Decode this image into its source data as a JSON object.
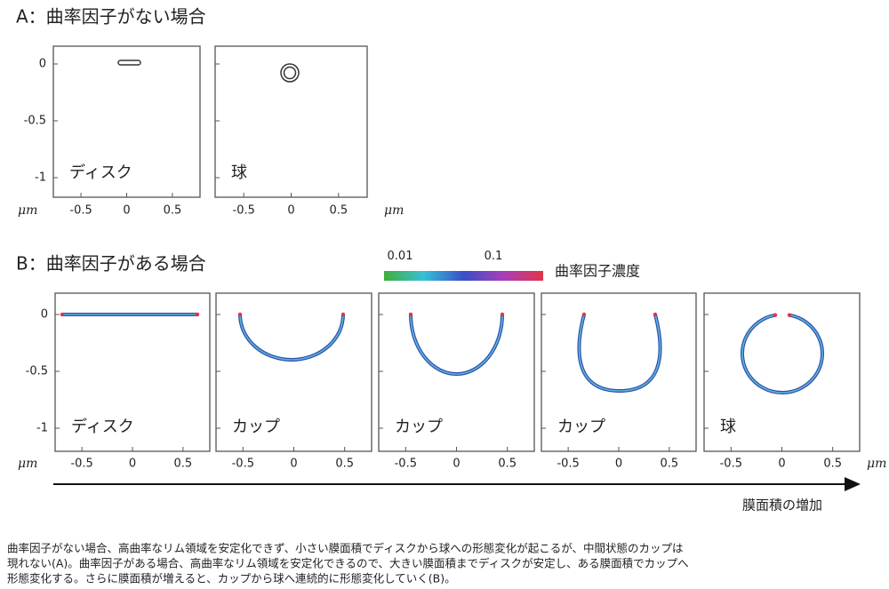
{
  "panel_a": {
    "title": "A：曲率因子がない場合",
    "yticks": [
      "0",
      "-0.5",
      "-1"
    ],
    "unit": "μm",
    "panels": [
      {
        "label": "ディスク",
        "xticks": [
          "-0.5",
          "0",
          "0.5"
        ]
      },
      {
        "label": "球",
        "xticks": [
          "-0.5",
          "0",
          "0.5"
        ]
      }
    ]
  },
  "panel_b": {
    "title": "B：曲率因子がある場合",
    "colorbar": {
      "ticks": [
        "0.01",
        "0.1"
      ],
      "label": "曲率因子濃度"
    },
    "yticks": [
      "0",
      "-0.5",
      "-1"
    ],
    "unit": "μm",
    "panels": [
      {
        "label": "ディスク",
        "xticks": [
          "-0.5",
          "0",
          "0.5"
        ]
      },
      {
        "label": "カップ",
        "xticks": [
          "-0.5",
          "0",
          "0.5"
        ]
      },
      {
        "label": "カップ",
        "xticks": [
          "-0.5",
          "0",
          "0.5"
        ]
      },
      {
        "label": "カップ",
        "xticks": [
          "-0.5",
          "0",
          "0.5"
        ]
      },
      {
        "label": "球",
        "xticks": [
          "-0.5",
          "0",
          "0.5"
        ]
      }
    ],
    "arrow_label": "膜面積の増加"
  },
  "caption": [
    "曲率因子がない場合、高曲率なリム領域を安定化できず、小さい膜面積でディスクから球への形態変化が起こるが、中間状態のカップは",
    "現れない(A)。曲率因子がある場合、高曲率なリム領域を安定化できるので、大きい膜面積までディスクが安定し、ある膜面積でカップへ",
    "形態変化する。さらに膜面積が増えると、カップから球へ連続的に形態変化していく(B)。"
  ]
}
